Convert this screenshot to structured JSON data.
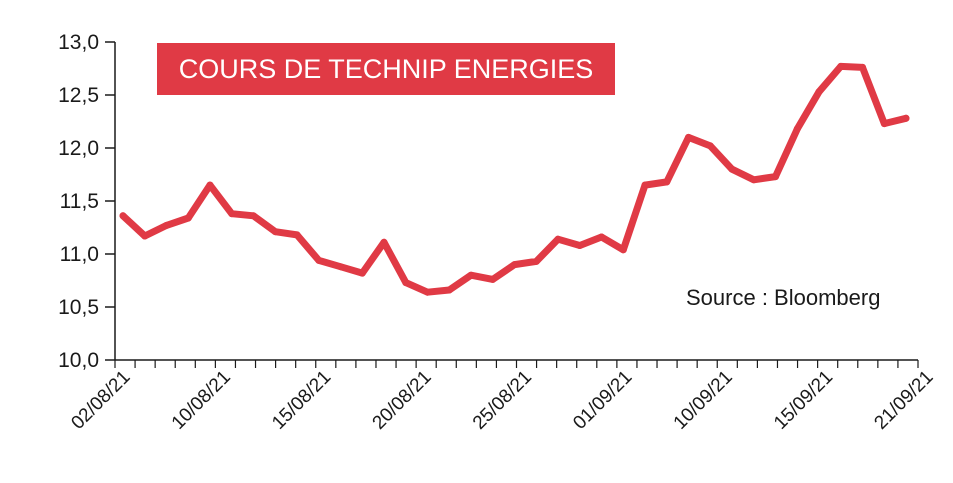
{
  "chart_data": {
    "type": "line",
    "title": "COURS DE TECHNIP ENERGIES",
    "source": "Source : Bloomberg",
    "color": "#e03a45",
    "ylim": [
      10.0,
      13.0
    ],
    "yticks": [
      "10,0",
      "10,5",
      "11,0",
      "11,5",
      "12,0",
      "12,5",
      "13,0"
    ],
    "ytick_values": [
      10.0,
      10.5,
      11.0,
      11.5,
      12.0,
      12.5,
      13.0
    ],
    "xtick_labels": [
      "02/08/21",
      "10/08/21",
      "15/08/21",
      "20/08/21",
      "25/08/21",
      "01/09/21",
      "10/09/21",
      "15/09/21",
      "21/09/21"
    ],
    "xtick_index": [
      0,
      5,
      10,
      15,
      20,
      25,
      30,
      35,
      40
    ],
    "grid": false,
    "series": [
      {
        "values": [
          11.36,
          11.17,
          11.27,
          11.34,
          11.65,
          11.38,
          11.36,
          11.21,
          11.18,
          10.94,
          10.88,
          10.82,
          11.11,
          10.73,
          10.64,
          10.66,
          10.8,
          10.76,
          10.9,
          10.93,
          11.14,
          11.08,
          11.16,
          11.04,
          11.65,
          11.68,
          12.1,
          12.02,
          11.8,
          11.7,
          11.73,
          12.18,
          12.53,
          12.77,
          12.76,
          12.23,
          12.28
        ]
      }
    ]
  }
}
